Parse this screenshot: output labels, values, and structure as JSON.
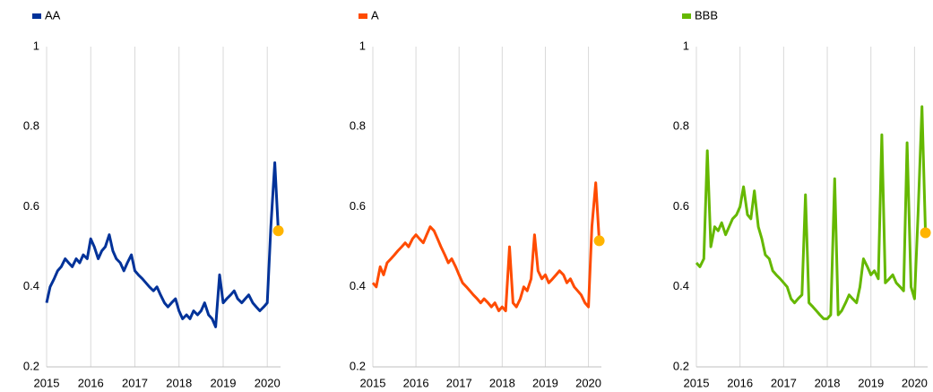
{
  "chart_data": [
    {
      "type": "line",
      "xlim": [
        2015,
        2020.3
      ],
      "xticks": [
        2015,
        2016,
        2017,
        2018,
        2019,
        2020
      ],
      "ylim": [
        0.2,
        1
      ],
      "yticks": [
        0.2,
        0.4,
        0.6,
        0.8,
        1
      ],
      "grid": true,
      "x": [
        2015,
        2015.08,
        2015.17,
        2015.25,
        2015.33,
        2015.42,
        2015.5,
        2015.58,
        2015.67,
        2015.75,
        2015.83,
        2015.92,
        2016,
        2016.08,
        2016.17,
        2016.25,
        2016.33,
        2016.42,
        2016.5,
        2016.58,
        2016.67,
        2016.75,
        2016.83,
        2016.92,
        2017,
        2017.08,
        2017.17,
        2017.25,
        2017.33,
        2017.42,
        2017.5,
        2017.58,
        2017.67,
        2017.75,
        2017.83,
        2017.92,
        2018,
        2018.08,
        2018.17,
        2018.25,
        2018.33,
        2018.42,
        2018.5,
        2018.58,
        2018.67,
        2018.75,
        2018.83,
        2018.92,
        2019,
        2019.08,
        2019.17,
        2019.25,
        2019.33,
        2019.42,
        2019.5,
        2019.58,
        2019.67,
        2019.75,
        2019.83,
        2019.92,
        2020,
        2020.08,
        2020.17,
        2020.25
      ],
      "series": [
        {
          "name": "AA",
          "color": "#003299",
          "values": [
            0.36,
            0.4,
            0.42,
            0.44,
            0.45,
            0.47,
            0.46,
            0.45,
            0.47,
            0.46,
            0.48,
            0.47,
            0.52,
            0.5,
            0.47,
            0.49,
            0.5,
            0.53,
            0.49,
            0.47,
            0.46,
            0.44,
            0.46,
            0.48,
            0.44,
            0.43,
            0.42,
            0.41,
            0.4,
            0.39,
            0.4,
            0.38,
            0.36,
            0.35,
            0.36,
            0.37,
            0.34,
            0.32,
            0.33,
            0.32,
            0.34,
            0.33,
            0.34,
            0.36,
            0.33,
            0.32,
            0.3,
            0.43,
            0.36,
            0.37,
            0.38,
            0.39,
            0.37,
            0.36,
            0.37,
            0.38,
            0.36,
            0.35,
            0.34,
            0.35,
            0.36,
            0.55,
            0.71,
            0.54
          ]
        }
      ],
      "point": {
        "x": 2020.25,
        "y": 0.54,
        "color": "#ffb400"
      }
    },
    {
      "type": "line",
      "xlim": [
        2015,
        2020.3
      ],
      "xticks": [
        2015,
        2016,
        2017,
        2018,
        2019,
        2020
      ],
      "ylim": [
        0.2,
        1
      ],
      "yticks": [
        0.2,
        0.4,
        0.6,
        0.8,
        1
      ],
      "grid": true,
      "x": [
        2015,
        2015.08,
        2015.17,
        2015.25,
        2015.33,
        2015.42,
        2015.5,
        2015.58,
        2015.67,
        2015.75,
        2015.83,
        2015.92,
        2016,
        2016.08,
        2016.17,
        2016.25,
        2016.33,
        2016.42,
        2016.5,
        2016.58,
        2016.67,
        2016.75,
        2016.83,
        2016.92,
        2017,
        2017.08,
        2017.17,
        2017.25,
        2017.33,
        2017.42,
        2017.5,
        2017.58,
        2017.67,
        2017.75,
        2017.83,
        2017.92,
        2018,
        2018.08,
        2018.17,
        2018.25,
        2018.33,
        2018.42,
        2018.5,
        2018.58,
        2018.67,
        2018.75,
        2018.83,
        2018.92,
        2019,
        2019.08,
        2019.17,
        2019.25,
        2019.33,
        2019.42,
        2019.5,
        2019.58,
        2019.67,
        2019.75,
        2019.83,
        2019.92,
        2020,
        2020.08,
        2020.17,
        2020.25
      ],
      "series": [
        {
          "name": "A",
          "color": "#ff4b00",
          "values": [
            0.41,
            0.4,
            0.45,
            0.43,
            0.46,
            0.47,
            0.48,
            0.49,
            0.5,
            0.51,
            0.5,
            0.52,
            0.53,
            0.52,
            0.51,
            0.53,
            0.55,
            0.54,
            0.52,
            0.5,
            0.48,
            0.46,
            0.47,
            0.45,
            0.43,
            0.41,
            0.4,
            0.39,
            0.38,
            0.37,
            0.36,
            0.37,
            0.36,
            0.35,
            0.36,
            0.34,
            0.35,
            0.34,
            0.5,
            0.36,
            0.35,
            0.37,
            0.4,
            0.39,
            0.42,
            0.53,
            0.44,
            0.42,
            0.43,
            0.41,
            0.42,
            0.43,
            0.44,
            0.43,
            0.41,
            0.42,
            0.4,
            0.39,
            0.38,
            0.36,
            0.35,
            0.55,
            0.66,
            0.515
          ]
        }
      ],
      "point": {
        "x": 2020.25,
        "y": 0.515,
        "color": "#ffb400"
      }
    },
    {
      "type": "line",
      "xlim": [
        2015,
        2020.3
      ],
      "xticks": [
        2015,
        2016,
        2017,
        2018,
        2019,
        2020
      ],
      "ylim": [
        0.2,
        1
      ],
      "yticks": [
        0.2,
        0.4,
        0.6,
        0.8,
        1
      ],
      "grid": true,
      "x": [
        2015,
        2015.08,
        2015.17,
        2015.25,
        2015.33,
        2015.42,
        2015.5,
        2015.58,
        2015.67,
        2015.75,
        2015.83,
        2015.92,
        2016,
        2016.08,
        2016.17,
        2016.25,
        2016.33,
        2016.42,
        2016.5,
        2016.58,
        2016.67,
        2016.75,
        2016.83,
        2016.92,
        2017,
        2017.08,
        2017.17,
        2017.25,
        2017.33,
        2017.42,
        2017.5,
        2017.58,
        2017.67,
        2017.75,
        2017.83,
        2017.92,
        2018,
        2018.08,
        2018.17,
        2018.25,
        2018.33,
        2018.42,
        2018.5,
        2018.58,
        2018.67,
        2018.75,
        2018.83,
        2018.92,
        2019,
        2019.08,
        2019.17,
        2019.25,
        2019.33,
        2019.42,
        2019.5,
        2019.58,
        2019.67,
        2019.75,
        2019.83,
        2019.92,
        2020,
        2020.08,
        2020.17,
        2020.25
      ],
      "series": [
        {
          "name": "BBB",
          "color": "#65b800",
          "values": [
            0.46,
            0.45,
            0.47,
            0.74,
            0.5,
            0.55,
            0.54,
            0.56,
            0.53,
            0.55,
            0.57,
            0.58,
            0.6,
            0.65,
            0.58,
            0.57,
            0.64,
            0.55,
            0.52,
            0.48,
            0.47,
            0.44,
            0.43,
            0.42,
            0.41,
            0.4,
            0.37,
            0.36,
            0.37,
            0.38,
            0.63,
            0.36,
            0.35,
            0.34,
            0.33,
            0.32,
            0.32,
            0.33,
            0.67,
            0.33,
            0.34,
            0.36,
            0.38,
            0.37,
            0.36,
            0.4,
            0.47,
            0.45,
            0.43,
            0.44,
            0.42,
            0.78,
            0.41,
            0.42,
            0.43,
            0.41,
            0.4,
            0.39,
            0.76,
            0.4,
            0.37,
            0.58,
            0.85,
            0.535
          ]
        }
      ],
      "point": {
        "x": 2020.25,
        "y": 0.535,
        "color": "#ffb400"
      }
    }
  ]
}
